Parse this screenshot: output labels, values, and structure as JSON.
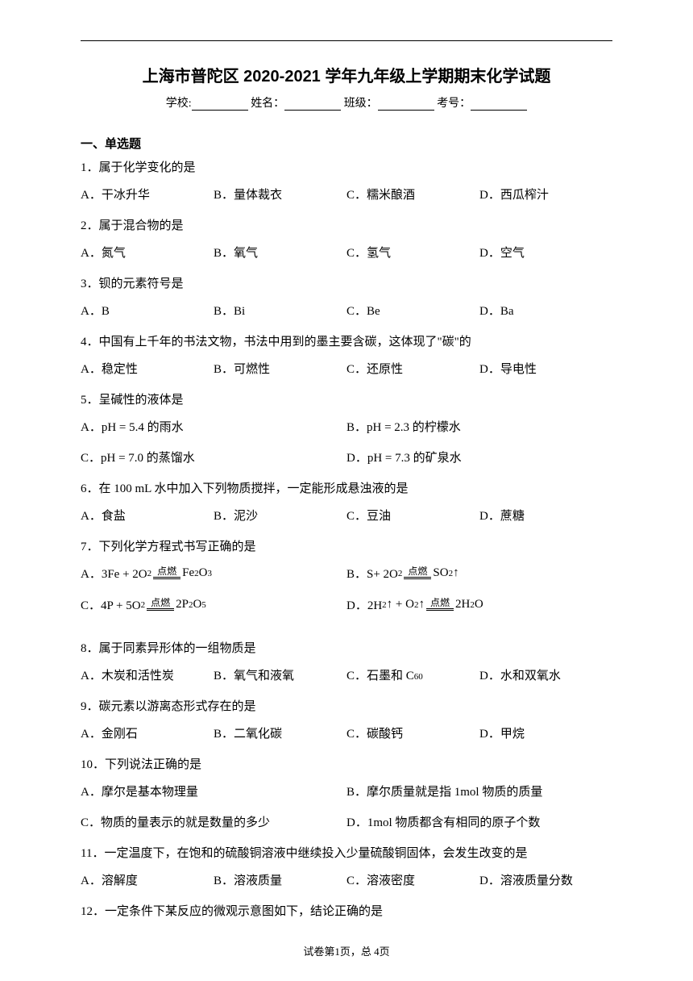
{
  "title": "上海市普陀区 2020-2021 学年九年级上学期期末化学试题",
  "info": {
    "school_label": "学校:",
    "name_label": "姓名：",
    "class_label": "班级：",
    "exam_no_label": "考号："
  },
  "section_header": "一、单选题",
  "q1": {
    "text": "1．属于化学变化的是",
    "a": "A．干冰升华",
    "b": "B．量体裁衣",
    "c": "C．糯米酿酒",
    "d": "D．西瓜榨汁"
  },
  "q2": {
    "text": "2．属于混合物的是",
    "a": "A．氮气",
    "b": "B．氧气",
    "c": "C．氢气",
    "d": "D．空气"
  },
  "q3": {
    "text": "3．钡的元素符号是",
    "a": "A．B",
    "b": "B．Bi",
    "c": "C．Be",
    "d": "D．Ba"
  },
  "q4": {
    "text": "4．中国有上千年的书法文物，书法中用到的墨主要含碳，这体现了\"碳\"的",
    "a": "A．稳定性",
    "b": "B．可燃性",
    "c": "C．还原性",
    "d": "D．导电性"
  },
  "q5": {
    "text": "5．呈碱性的液体是",
    "a": "A．pH = 5.4 的雨水",
    "b": "B．pH = 2.3 的柠檬水",
    "c": "C．pH = 7.0 的蒸馏水",
    "d": "D．pH = 7.3 的矿泉水"
  },
  "q6": {
    "text": "6．在 100 mL 水中加入下列物质搅拌，一定能形成悬浊液的是",
    "a": "A．食盐",
    "b": "B．泥沙",
    "c": "C．豆油",
    "d": "D．蔗糖"
  },
  "q7": {
    "text": "7．下列化学方程式书写正确的是",
    "cond": "点燃",
    "a_l": "A．3Fe + 2O",
    "a_r": " Fe",
    "a_r2": "O",
    "b_l": "B．S+ 2O",
    "b_r": "SO",
    "c_l": "C．4P + 5O",
    "c_r": "2P",
    "c_r2": "O",
    "d_l": "D．2H",
    "d_m": "↑ + O",
    "d_r": "2H",
    "d_r2": "O"
  },
  "q8": {
    "text": "8．属于同素异形体的一组物质是",
    "a": "A．木炭和活性炭",
    "b": "B．氧气和液氧",
    "c": "C．石墨和 C",
    "c_sub": "60",
    "d": "D．水和双氧水"
  },
  "q9": {
    "text": "9．碳元素以游离态形式存在的是",
    "a": "A．金刚石",
    "b": "B．二氧化碳",
    "c": "C．碳酸钙",
    "d": "D．甲烷"
  },
  "q10": {
    "text": "10．下列说法正确的是",
    "a": "A．摩尔是基本物理量",
    "b": "B．摩尔质量就是指 1mol 物质的质量",
    "c": "C．物质的量表示的就是数量的多少",
    "d": "D．1mol 物质都含有相同的原子个数"
  },
  "q11": {
    "text": "11．一定温度下，在饱和的硫酸铜溶液中继续投入少量硫酸铜固体，会发生改变的是",
    "a": "A．溶解度",
    "b": "B．溶液质量",
    "c": "C．溶液密度",
    "d": "D．溶液质量分数"
  },
  "q12": {
    "text": "12．一定条件下某反应的微观示意图如下，结论正确的是"
  },
  "footer": "试卷第1页，总 4页"
}
